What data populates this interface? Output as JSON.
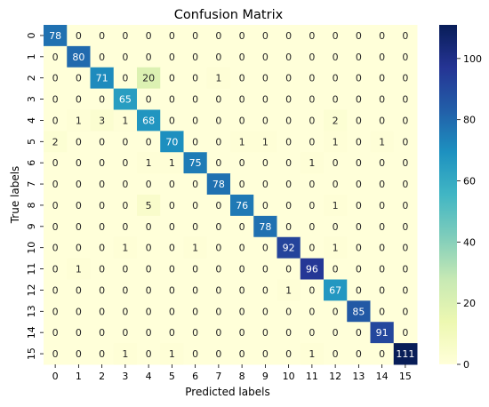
{
  "chart_data": {
    "type": "heatmap",
    "title": "Confusion Matrix",
    "xlabel": "Predicted labels",
    "ylabel": "True labels",
    "x_tick_labels": [
      "0",
      "1",
      "2",
      "3",
      "4",
      "5",
      "6",
      "7",
      "8",
      "9",
      "10",
      "11",
      "12",
      "13",
      "14",
      "15"
    ],
    "y_tick_labels": [
      "0",
      "1",
      "2",
      "3",
      "4",
      "5",
      "6",
      "7",
      "8",
      "9",
      "10",
      "11",
      "12",
      "13",
      "14",
      "15"
    ],
    "matrix": [
      [
        78,
        0,
        0,
        0,
        0,
        0,
        0,
        0,
        0,
        0,
        0,
        0,
        0,
        0,
        0,
        0
      ],
      [
        0,
        80,
        0,
        0,
        0,
        0,
        0,
        0,
        0,
        0,
        0,
        0,
        0,
        0,
        0,
        0
      ],
      [
        0,
        0,
        71,
        0,
        20,
        0,
        0,
        1,
        0,
        0,
        0,
        0,
        0,
        0,
        0,
        0
      ],
      [
        0,
        0,
        0,
        65,
        0,
        0,
        0,
        0,
        0,
        0,
        0,
        0,
        0,
        0,
        0,
        0
      ],
      [
        0,
        1,
        3,
        1,
        68,
        0,
        0,
        0,
        0,
        0,
        0,
        0,
        2,
        0,
        0,
        0
      ],
      [
        2,
        0,
        0,
        0,
        0,
        70,
        0,
        0,
        1,
        1,
        0,
        0,
        1,
        0,
        1,
        0
      ],
      [
        0,
        0,
        0,
        0,
        1,
        1,
        75,
        0,
        0,
        0,
        0,
        1,
        0,
        0,
        0,
        0
      ],
      [
        0,
        0,
        0,
        0,
        0,
        0,
        0,
        78,
        0,
        0,
        0,
        0,
        0,
        0,
        0,
        0
      ],
      [
        0,
        0,
        0,
        0,
        5,
        0,
        0,
        0,
        76,
        0,
        0,
        0,
        1,
        0,
        0,
        0
      ],
      [
        0,
        0,
        0,
        0,
        0,
        0,
        0,
        0,
        0,
        78,
        0,
        0,
        0,
        0,
        0,
        0
      ],
      [
        0,
        0,
        0,
        1,
        0,
        0,
        1,
        0,
        0,
        0,
        92,
        0,
        1,
        0,
        0,
        0
      ],
      [
        0,
        1,
        0,
        0,
        0,
        0,
        0,
        0,
        0,
        0,
        0,
        96,
        0,
        0,
        0,
        0
      ],
      [
        0,
        0,
        0,
        0,
        0,
        0,
        0,
        0,
        0,
        0,
        1,
        0,
        67,
        0,
        0,
        0
      ],
      [
        0,
        0,
        0,
        0,
        0,
        0,
        0,
        0,
        0,
        0,
        0,
        0,
        0,
        85,
        0,
        0
      ],
      [
        0,
        0,
        0,
        0,
        0,
        0,
        0,
        0,
        0,
        0,
        0,
        0,
        0,
        0,
        91,
        0
      ],
      [
        0,
        0,
        0,
        1,
        0,
        1,
        0,
        0,
        0,
        0,
        0,
        1,
        0,
        0,
        0,
        111
      ]
    ],
    "vmin": 0,
    "vmax": 111,
    "colormap": "YlGnBu",
    "colorbar_ticks": [
      0,
      20,
      40,
      60,
      80,
      100
    ],
    "annotation_colors": {
      "dark_bg": "#ffffff",
      "light_bg": "#262626"
    }
  }
}
